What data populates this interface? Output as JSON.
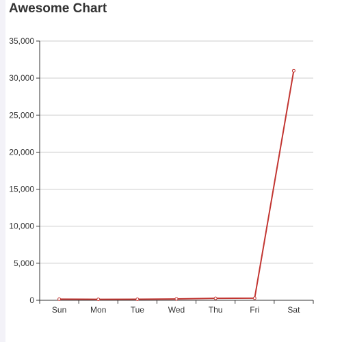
{
  "title": "Awesome Chart",
  "chart_data": {
    "type": "line",
    "title": "Awesome Chart",
    "categories": [
      "Sun",
      "Mon",
      "Tue",
      "Wed",
      "Thu",
      "Fri",
      "Sat"
    ],
    "series": [
      {
        "values": [
          150,
          130,
          140,
          180,
          260,
          290,
          31000
        ],
        "color": "#c23531"
      }
    ],
    "ylim": [
      0,
      35000
    ],
    "yticks": [
      0,
      5000,
      10000,
      15000,
      20000,
      25000,
      30000,
      35000
    ],
    "ytick_labels": [
      "0",
      "5,000",
      "10,000",
      "15,000",
      "20,000",
      "25,000",
      "30,000",
      "35,000"
    ],
    "grid": true,
    "xlabel": "",
    "ylabel": ""
  }
}
